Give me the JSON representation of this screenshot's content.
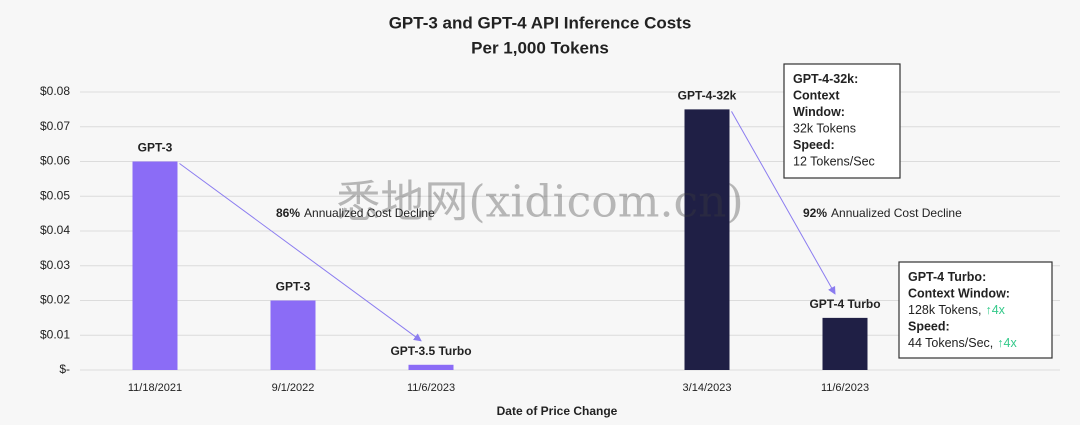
{
  "chart_data": {
    "type": "bar",
    "title": "GPT-3 and GPT-4 API Inference Costs",
    "subtitle": "Per 1,000 Tokens",
    "x_label": "Date of Price Change",
    "categories": [
      "11/18/2021",
      "9/1/2022",
      "11/6/2023",
      null,
      "3/14/2023",
      "11/6/2023"
    ],
    "values": [
      0.06,
      0.02,
      0.0015,
      null,
      0.075,
      0.015
    ],
    "bar_labels": [
      "GPT-3",
      "GPT-3",
      "GPT-3.5 Turbo",
      null,
      "GPT-4-32k",
      "GPT-4 Turbo"
    ],
    "colors": [
      "#8b6cf6",
      "#8b6cf6",
      "#8b6cf6",
      null,
      "#1f1f45",
      "#1f1f45"
    ],
    "ylim": [
      0,
      0.08
    ],
    "yticks": [
      {
        "value": 0,
        "label": "$-"
      },
      {
        "value": 0.01,
        "label": "$0.01"
      },
      {
        "value": 0.02,
        "label": "$0.02"
      },
      {
        "value": 0.03,
        "label": "$0.03"
      },
      {
        "value": 0.04,
        "label": "$0.04"
      },
      {
        "value": 0.05,
        "label": "$0.05"
      },
      {
        "value": 0.06,
        "label": "$0.06"
      },
      {
        "value": 0.07,
        "label": "$0.07"
      },
      {
        "value": 0.08,
        "label": "$0.08"
      }
    ],
    "grid": true,
    "arrow_color": "#8b7cf0",
    "annotations": [
      {
        "bold": "86%",
        "text": "Annualized Cost Decline"
      },
      {
        "bold": "92%",
        "text": "Annualized Cost Decline"
      }
    ],
    "callouts": [
      {
        "lines": [
          {
            "text": "GPT-4-32k:",
            "bold": true
          },
          {
            "text": "Context",
            "bold": true
          },
          {
            "text": "Window:",
            "bold": true
          },
          {
            "text": "32k Tokens",
            "bold": false
          },
          {
            "text": "Speed:",
            "bold": true
          },
          {
            "text": "12 Tokens/Sec",
            "bold": false
          }
        ]
      },
      {
        "lines": [
          {
            "text": "GPT-4 Turbo:",
            "bold": true
          },
          {
            "text": "Context Window:",
            "bold": true
          },
          {
            "text": "128k Tokens,",
            "bold": false,
            "highlight": "↑4x"
          },
          {
            "text": "Speed:",
            "bold": true
          },
          {
            "text": "44 Tokens/Sec,",
            "bold": false,
            "highlight": "↑4x"
          }
        ]
      }
    ],
    "highlight_color": "#34c98a",
    "watermark": "悉地网(xidicom.cn)"
  }
}
